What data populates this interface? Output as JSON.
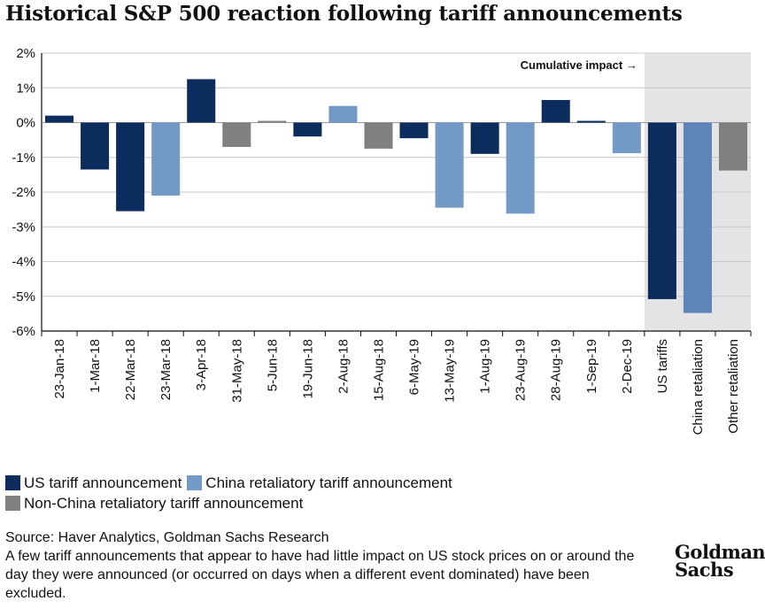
{
  "title": "Historical S&P 500 reaction following tariff announcements",
  "annotation": "Cumulative impact →",
  "legend": {
    "items": [
      {
        "label": "US tariff announcement",
        "color": "#0c2c5e"
      },
      {
        "label": "China retaliatory tariff announcement",
        "color": "#7399c6"
      },
      {
        "label": "Non-China retaliatory tariff announcement",
        "color": "#808080"
      }
    ]
  },
  "footer": {
    "source": "Source: Haver Analytics, Goldman Sachs Research",
    "note": "A few tariff announcements that appear to have had little impact on US stock prices on or around the day they were announced (or occurred on days when a different event dominated) have been excluded."
  },
  "logo": {
    "line1": "Goldman",
    "line2": "Sachs"
  },
  "chart_data": {
    "type": "bar",
    "ylim": [
      -6,
      2
    ],
    "yticks": [
      "2%",
      "1%",
      "0%",
      "-1%",
      "-2%",
      "-3%",
      "-4%",
      "-5%",
      "-6%"
    ],
    "grid": true,
    "categories": [
      "23-Jan-18",
      "1-Mar-18",
      "22-Mar-18",
      "23-Mar-18",
      "3-Apr-18",
      "31-May-18",
      "5-Jun-18",
      "19-Jun-18",
      "2-Aug-18",
      "15-Aug-18",
      "6-May-19",
      "13-May-19",
      "1-Aug-19",
      "23-Aug-19",
      "28-Aug-19",
      "1-Sep-19",
      "2-Dec-19",
      "US tariffs",
      "China retaliation",
      "Other retaliation"
    ],
    "values": [
      0.2,
      -1.35,
      -2.55,
      -2.1,
      1.25,
      -0.7,
      0.05,
      -0.4,
      0.48,
      -0.75,
      -0.45,
      -2.45,
      -0.9,
      -2.62,
      0.65,
      0.05,
      -0.88,
      -5.08,
      -5.48,
      -1.38
    ],
    "groups": [
      "us",
      "us",
      "us",
      "china",
      "us",
      "other",
      "other",
      "us",
      "china",
      "other",
      "us",
      "china",
      "us",
      "china",
      "us",
      "us",
      "china",
      "us",
      "china",
      "other"
    ],
    "colors": {
      "us": "#0c2c5e",
      "china": "#7399c6",
      "other": "#808080",
      "china_cumulative": "#5f84b7"
    },
    "shaded_region": {
      "from_category": "US tariffs",
      "color": "#e4e4e6"
    }
  }
}
